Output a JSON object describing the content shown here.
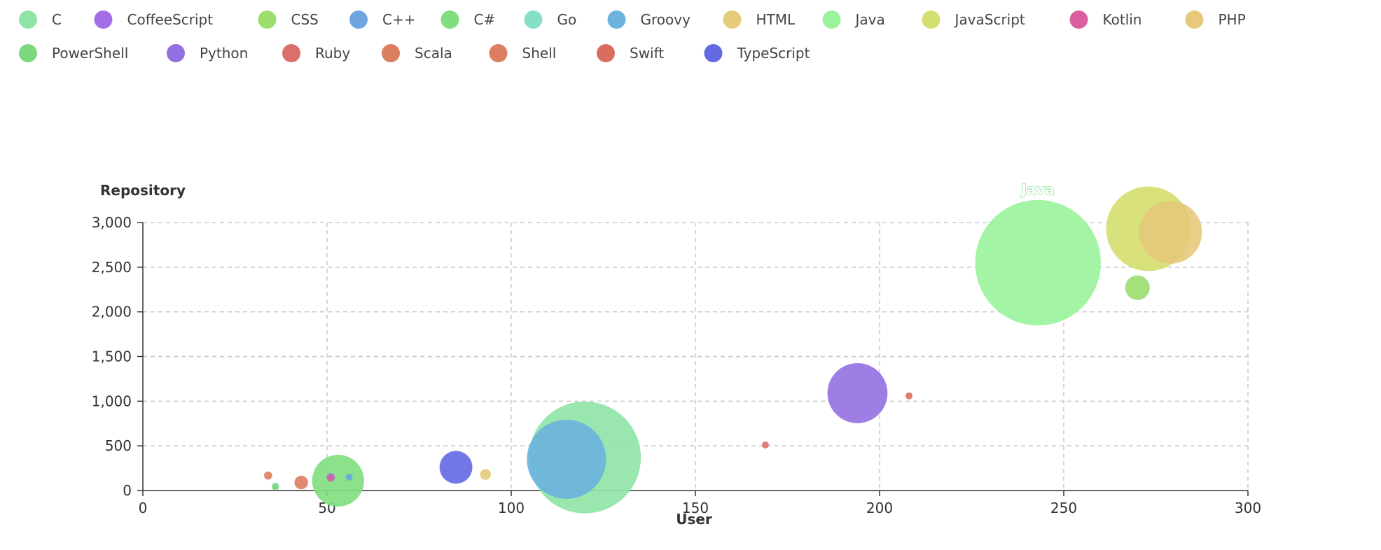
{
  "chart_data": {
    "type": "scatter",
    "xlabel": "User",
    "ylabel": "Repository",
    "xlim": [
      0,
      300
    ],
    "ylim": [
      0,
      3000
    ],
    "x_ticks": [
      "0",
      "50",
      "100",
      "150",
      "200",
      "250",
      "300"
    ],
    "y_ticks": [
      "0",
      "500",
      "1,000",
      "1,500",
      "2,000",
      "2,500",
      "3,000"
    ],
    "grid": true,
    "legend_position": "top",
    "labeled_point": "Java",
    "series": [
      {
        "name": "C",
        "color": "#8ee3a6",
        "x": 120,
        "y": 370,
        "size": 41
      },
      {
        "name": "CoffeeScript",
        "color": "#a26ee6",
        "x": 51,
        "y": 148,
        "size": 3
      },
      {
        "name": "CSS",
        "color": "#9bde6b",
        "x": 270,
        "y": 2270,
        "size": 9
      },
      {
        "name": "C++",
        "color": "#6fa6e0",
        "x": 56,
        "y": 150,
        "size": 1
      },
      {
        "name": "C#",
        "color": "#80de7e",
        "x": 53,
        "y": 110,
        "size": 19
      },
      {
        "name": "Go",
        "color": "#86e0c8",
        "x": 36,
        "y": 50,
        "size": 1
      },
      {
        "name": "Groovy",
        "color": "#6bb2df",
        "x": 115,
        "y": 350,
        "size": 29
      },
      {
        "name": "HTML",
        "color": "#e6cc7a",
        "x": 93,
        "y": 180,
        "size": 4
      },
      {
        "name": "Java",
        "color": "#99f39a",
        "x": 243,
        "y": 2550,
        "size": 46
      },
      {
        "name": "JavaScript",
        "color": "#d4de6e",
        "x": 273,
        "y": 2930,
        "size": 31
      },
      {
        "name": "Kotlin",
        "color": "#d95f9e",
        "x": 51,
        "y": 140,
        "size": 2
      },
      {
        "name": "PHP",
        "color": "#e6c97a",
        "x": 279,
        "y": 2890,
        "size": 23
      },
      {
        "name": "PowerShell",
        "color": "#7bd87c",
        "x": 36,
        "y": 40,
        "size": 1
      },
      {
        "name": "Python",
        "color": "#9370e2",
        "x": 194,
        "y": 1090,
        "size": 22
      },
      {
        "name": "Ruby",
        "color": "#db6f6a",
        "x": 169,
        "y": 510,
        "size": 2
      },
      {
        "name": "Scala",
        "color": "#db7f5e",
        "x": 34,
        "y": 168,
        "size": 3
      },
      {
        "name": "Shell",
        "color": "#dc7e62",
        "x": 43,
        "y": 90,
        "size": 5
      },
      {
        "name": "Swift",
        "color": "#d96e5e",
        "x": 208,
        "y": 1060,
        "size": 2
      },
      {
        "name": "TypeScript",
        "color": "#6468e2",
        "x": 85,
        "y": 260,
        "size": 12
      }
    ]
  }
}
